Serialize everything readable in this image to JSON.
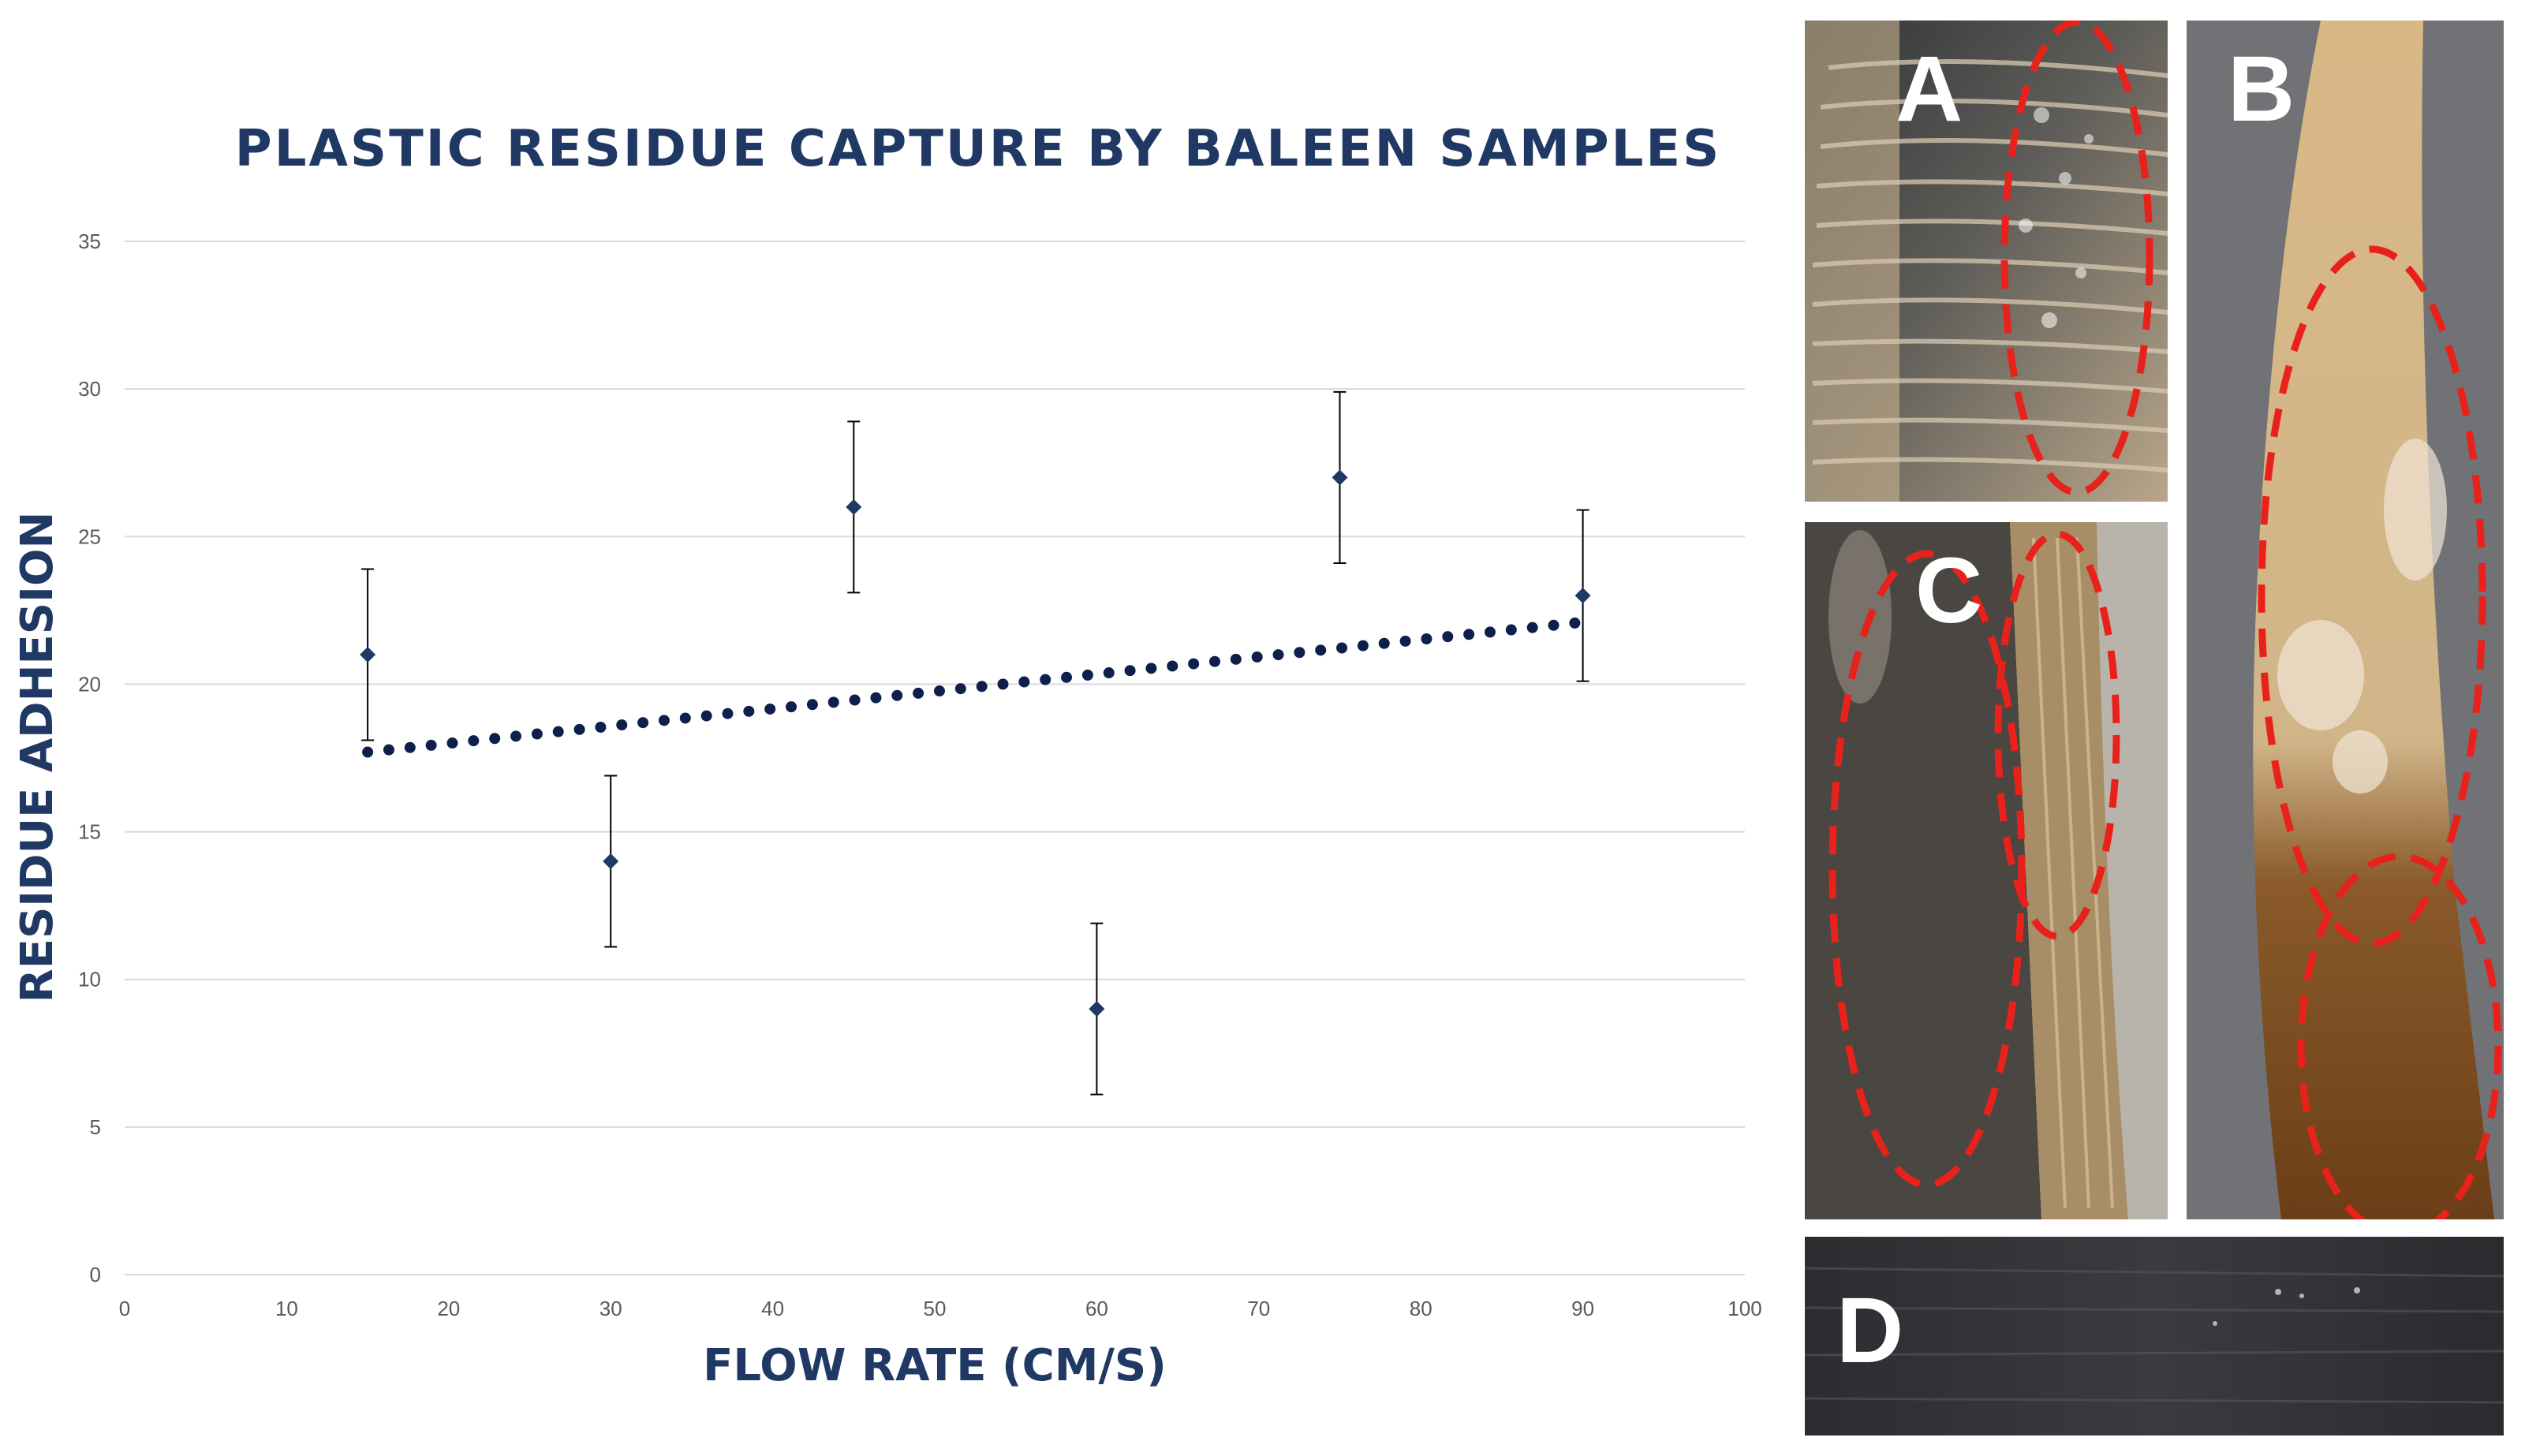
{
  "chart_data": {
    "type": "scatter",
    "title": "PLASTIC RESIDUE CAPTURE BY BALEEN SAMPLES",
    "xlabel": "FLOW RATE (CM/S)",
    "ylabel": "RESIDUE ADHESION",
    "xlim": [
      0,
      100
    ],
    "ylim": [
      0,
      35
    ],
    "x_ticks": [
      "0",
      "10",
      "20",
      "30",
      "40",
      "50",
      "60",
      "70",
      "80",
      "90",
      "100"
    ],
    "y_ticks": [
      "0",
      "5",
      "10",
      "15",
      "20",
      "25",
      "30",
      "35"
    ],
    "grid": "horizontal",
    "points": [
      {
        "x": 15,
        "y": 21,
        "err": 2.9
      },
      {
        "x": 30,
        "y": 14,
        "err": 2.9
      },
      {
        "x": 45,
        "y": 26,
        "err": 2.9
      },
      {
        "x": 60,
        "y": 9,
        "err": 2.9
      },
      {
        "x": 75,
        "y": 27,
        "err": 2.9
      },
      {
        "x": 90,
        "y": 23,
        "err": 2.9
      }
    ],
    "trendline": {
      "style": "dotted",
      "x_start": 15,
      "y_start": 17.7,
      "x_end": 90,
      "y_end": 22.1
    },
    "colors": {
      "marker": "#1f3864",
      "trend": "#0d1f4a",
      "title": "#1f3864",
      "grid": "#d9d9d9",
      "tick_text": "#595959",
      "error_bar": "#000000"
    }
  },
  "photos": {
    "panels": [
      {
        "label": "A",
        "icon": "baleen-fringe-photo"
      },
      {
        "label": "B",
        "icon": "baleen-plate-photo"
      },
      {
        "label": "C",
        "icon": "baleen-dark-plate-photo"
      },
      {
        "label": "D",
        "icon": "baleen-surface-closeup-photo"
      }
    ],
    "highlight_color": "#e8221b"
  }
}
